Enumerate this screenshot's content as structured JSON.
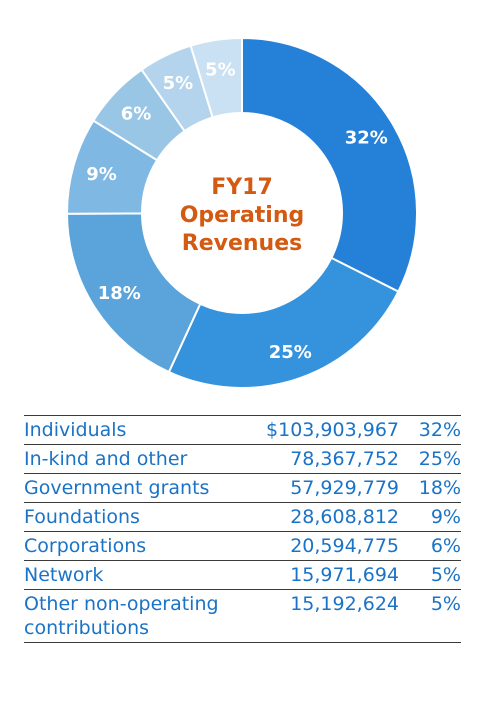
{
  "chart_data": {
    "type": "pie",
    "donut": true,
    "center_title": [
      "FY17",
      "Operating",
      "Revenues"
    ],
    "categories": [
      "Individuals",
      "In-kind and other",
      "Government grants",
      "Foundations",
      "Corporations",
      "Network",
      "Other non-operating contributions"
    ],
    "categories_display": [
      [
        "Individuals"
      ],
      [
        "In-kind and other"
      ],
      [
        "Government grants"
      ],
      [
        "Foundations"
      ],
      [
        "Corporations"
      ],
      [
        "Network"
      ],
      [
        "Other non-operating",
        "contributions"
      ]
    ],
    "amounts": [
      "$103,903,967",
      "78,367,752",
      "57,929,779",
      "28,608,812",
      "20,594,775",
      "15,971,694",
      "15,192,624"
    ],
    "values": [
      103903967,
      78367752,
      57929779,
      28608812,
      20594775,
      15971694,
      15192624
    ],
    "percent_labels": [
      "32%",
      "25%",
      "18%",
      "9%",
      "6%",
      "5%",
      "5%"
    ],
    "colors": [
      "#2580d8",
      "#3592dd",
      "#5aa4db",
      "#7fb8e2",
      "#9ac6e6",
      "#b3d4ec",
      "#c9e1f2"
    ],
    "text_colors": {
      "center_title": "#d45a12",
      "legend_text": "#1a73c7",
      "slice_label": "#ffffff",
      "rule": "#3a3a3a"
    }
  }
}
